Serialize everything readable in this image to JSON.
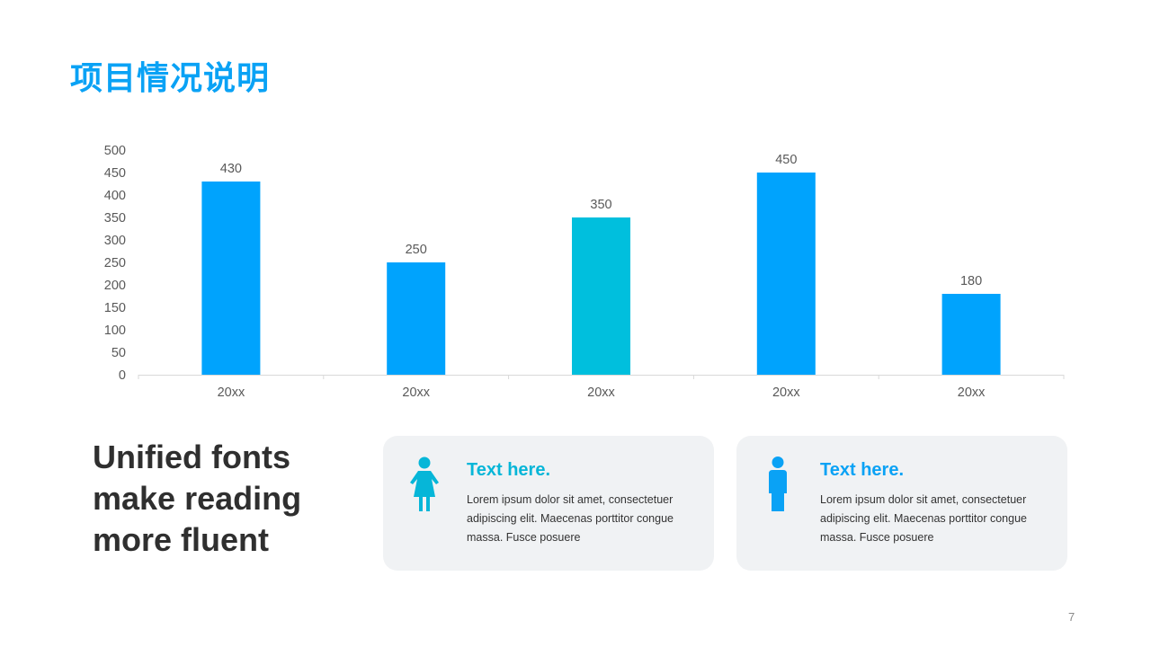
{
  "title": "项目情况说明",
  "headline": "Unified fonts make reading more fluent",
  "cards": [
    {
      "title": "Text here.",
      "body": "Lorem ipsum dolor sit amet, consectetuer adipiscing elit. Maecenas porttitor congue massa. Fusce posuere",
      "icon": "female-person-icon",
      "color": "#06b6d8"
    },
    {
      "title": "Text here.",
      "body": "Lorem ipsum dolor sit amet, consectetuer adipiscing elit. Maecenas porttitor congue massa. Fusce posuere",
      "icon": "male-person-icon",
      "color": "#0aa2f5"
    }
  ],
  "page_number": "7",
  "chart_data": {
    "type": "bar",
    "categories": [
      "20xx",
      "20xx",
      "20xx",
      "20xx",
      "20xx"
    ],
    "values": [
      430,
      250,
      350,
      450,
      180
    ],
    "data_labels": [
      "430",
      "250",
      "350",
      "450",
      "180"
    ],
    "bar_colors": [
      "#00a3fd",
      "#00a3fd",
      "#00bfdd",
      "#00a3fd",
      "#00a3fd"
    ],
    "ylim": [
      0,
      500
    ],
    "yticks": [
      0,
      50,
      100,
      150,
      200,
      250,
      300,
      350,
      400,
      450,
      500
    ],
    "title": "",
    "xlabel": "",
    "ylabel": "",
    "grid": false,
    "legend": "none"
  }
}
